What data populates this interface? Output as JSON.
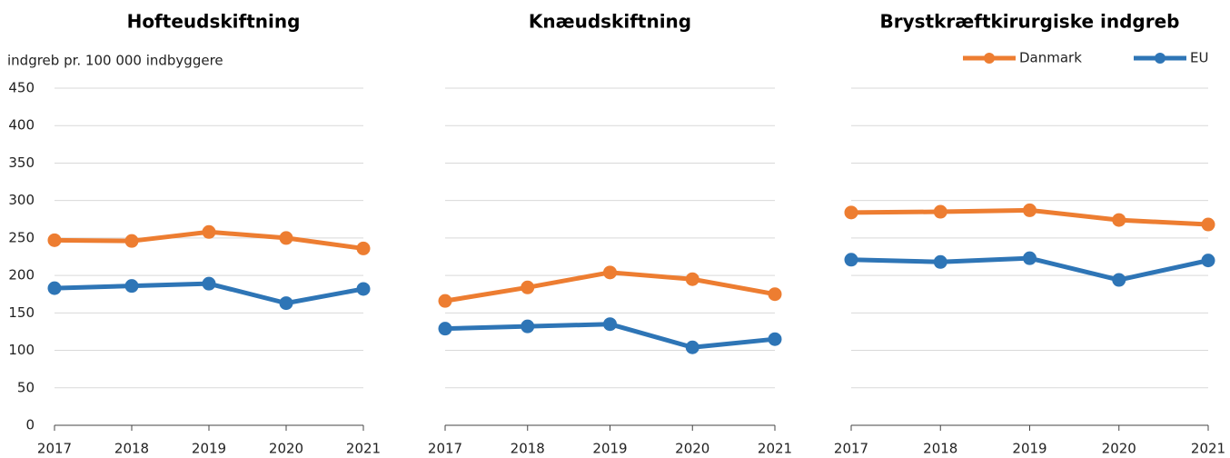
{
  "chart_data": [
    {
      "type": "line",
      "title": "Hofteudskiftning",
      "y_label": "indgreb pr. 100 000 indbyggere",
      "categories": [
        "2017",
        "2018",
        "2019",
        "2020",
        "2021"
      ],
      "series": [
        {
          "name": "Danmark",
          "color": "#ED7D31",
          "values": [
            247,
            246,
            258,
            250,
            236
          ]
        },
        {
          "name": "EU",
          "color": "#2E75B6",
          "values": [
            183,
            186,
            189,
            163,
            182
          ]
        }
      ],
      "ylim": [
        0,
        450
      ],
      "yticks": [
        0,
        50,
        100,
        150,
        200,
        250,
        300,
        350,
        400,
        450
      ],
      "show_ytick_labels": true,
      "grid": true
    },
    {
      "type": "line",
      "title": "Knæudskiftning",
      "categories": [
        "2017",
        "2018",
        "2019",
        "2020",
        "2021"
      ],
      "series": [
        {
          "name": "Danmark",
          "color": "#ED7D31",
          "values": [
            166,
            184,
            204,
            195,
            175
          ]
        },
        {
          "name": "EU",
          "color": "#2E75B6",
          "values": [
            129,
            132,
            135,
            104,
            115
          ]
        }
      ],
      "ylim": [
        0,
        450
      ],
      "yticks": [
        0,
        50,
        100,
        150,
        200,
        250,
        300,
        350,
        400,
        450
      ],
      "show_ytick_labels": false,
      "grid": true
    },
    {
      "type": "line",
      "title": "Brystkræftkirurgiske indgreb",
      "categories": [
        "2017",
        "2018",
        "2019",
        "2020",
        "2021"
      ],
      "series": [
        {
          "name": "Danmark",
          "color": "#ED7D31",
          "values": [
            284,
            285,
            287,
            274,
            268
          ]
        },
        {
          "name": "EU",
          "color": "#2E75B6",
          "values": [
            221,
            218,
            223,
            194,
            220
          ]
        }
      ],
      "ylim": [
        0,
        450
      ],
      "yticks": [
        0,
        50,
        100,
        150,
        200,
        250,
        300,
        350,
        400,
        450
      ],
      "show_ytick_labels": false,
      "grid": true,
      "legend": "top-right"
    }
  ]
}
